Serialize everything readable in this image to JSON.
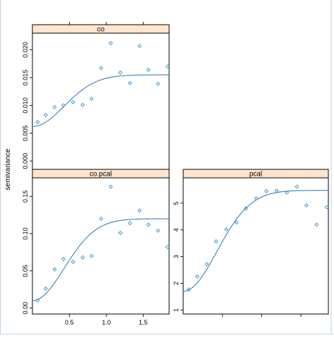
{
  "chart_data": {
    "type": "scatter",
    "ylabel": "semivariance",
    "colors": {
      "points": "#3b8fc4",
      "curve": "#3a7fbd",
      "strip": "#ffe5cc",
      "window_border": "#bcd3ea"
    },
    "panels": [
      {
        "id": "co",
        "strip_label": "co",
        "xlim": [
          0,
          1.85
        ],
        "ylim": [
          -0.0015,
          0.023
        ],
        "yticks": [
          "0.000",
          "0.005",
          "0.010",
          "0.015",
          "0.020"
        ],
        "ytick_values": [
          0,
          0.005,
          0.01,
          0.015,
          0.02
        ],
        "xticks": [],
        "xtick_marks": [
          0.5,
          1.0,
          1.5
        ],
        "x": [
          0.07,
          0.18,
          0.3,
          0.42,
          0.55,
          0.68,
          0.8,
          0.93,
          1.06,
          1.19,
          1.32,
          1.45,
          1.57,
          1.7,
          1.83
        ],
        "y": [
          0.007,
          0.0083,
          0.0097,
          0.01,
          0.0106,
          0.0101,
          0.0112,
          0.0167,
          0.0212,
          0.0159,
          0.014,
          0.0207,
          0.0164,
          0.0139,
          0.017
        ],
        "model": {
          "nugget": 0.0062,
          "sill": 0.0155,
          "range": 1.05
        }
      },
      {
        "id": "co-pcal",
        "strip_label": "co.pcal",
        "xlim": [
          0,
          1.85
        ],
        "ylim": [
          -0.008,
          0.175
        ],
        "yticks": [
          "0.00",
          "0.05",
          "0.10",
          "0.15"
        ],
        "ytick_values": [
          0,
          0.05,
          0.1,
          0.15
        ],
        "xticks": [
          "0.5",
          "1.0",
          "1.5"
        ],
        "xtick_values": [
          0.5,
          1.0,
          1.5
        ],
        "x": [
          0.07,
          0.18,
          0.3,
          0.42,
          0.55,
          0.68,
          0.8,
          0.93,
          1.06,
          1.19,
          1.32,
          1.45,
          1.57,
          1.7,
          1.83
        ],
        "y": [
          0.01,
          0.026,
          0.052,
          0.066,
          0.062,
          0.068,
          0.07,
          0.12,
          0.163,
          0.101,
          0.114,
          0.131,
          0.112,
          0.104,
          0.082
        ],
        "model": {
          "nugget": 0.01,
          "sill": 0.12,
          "range": 1.05
        }
      },
      {
        "id": "pcal",
        "strip_label": "pcal",
        "xlim": [
          0,
          1.85
        ],
        "ylim": [
          0.85,
          5.95
        ],
        "yticks": [
          "1",
          "2",
          "3",
          "4",
          "5"
        ],
        "ytick_values": [
          1,
          2,
          3,
          4,
          5
        ],
        "xticks": [],
        "xtick_marks": [
          0.5,
          1.0,
          1.5
        ],
        "x": [
          0.07,
          0.18,
          0.3,
          0.42,
          0.55,
          0.68,
          0.8,
          0.93,
          1.06,
          1.19,
          1.32,
          1.45,
          1.57,
          1.7,
          1.83
        ],
        "y": [
          1.77,
          2.25,
          2.72,
          3.57,
          4.02,
          4.28,
          4.8,
          5.18,
          5.45,
          5.47,
          5.4,
          5.62,
          4.92,
          4.2,
          4.85
        ],
        "model": {
          "nugget": 1.7,
          "sill": 5.48,
          "range": 1.05
        }
      }
    ]
  }
}
